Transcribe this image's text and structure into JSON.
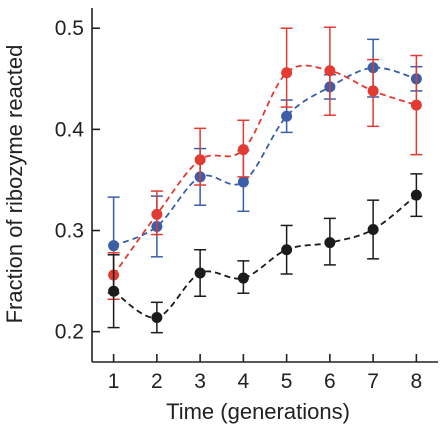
{
  "chart_data": {
    "type": "line",
    "xlabel": "Time (generations)",
    "ylabel": "Fraction of ribozyme reacted",
    "x": [
      1,
      2,
      3,
      4,
      5,
      6,
      7,
      8
    ],
    "xlim": [
      0.5,
      8.5
    ],
    "ylim": [
      0.17,
      0.52
    ],
    "xticks": [
      1,
      2,
      3,
      4,
      5,
      6,
      7,
      8
    ],
    "yticks": [
      0.2,
      0.3,
      0.4,
      0.5
    ],
    "ytick_labels": [
      "0.2",
      "0.3",
      "0.4",
      "0.5"
    ],
    "grid": false,
    "legend": "none",
    "series": [
      {
        "color": "#3a5ea8",
        "values": [
          0.285,
          0.304,
          0.353,
          0.348,
          0.413,
          0.442,
          0.461,
          0.45
        ],
        "err_low": [
          0.238,
          0.274,
          0.325,
          0.319,
          0.397,
          0.43,
          0.432,
          0.438
        ],
        "err_high": [
          0.333,
          0.334,
          0.381,
          0.379,
          0.429,
          0.454,
          0.489,
          0.462
        ]
      },
      {
        "color": "#e23b32",
        "values": [
          0.256,
          0.316,
          0.37,
          0.38,
          0.456,
          0.458,
          0.438,
          0.424
        ],
        "err_low": [
          0.232,
          0.296,
          0.345,
          0.353,
          0.422,
          0.414,
          0.403,
          0.375
        ],
        "err_high": [
          0.278,
          0.339,
          0.401,
          0.409,
          0.5,
          0.501,
          0.469,
          0.473
        ]
      },
      {
        "color": "#1b1b1b",
        "values": [
          0.24,
          0.214,
          0.258,
          0.253,
          0.281,
          0.288,
          0.301,
          0.335
        ],
        "err_low": [
          0.204,
          0.199,
          0.235,
          0.238,
          0.257,
          0.266,
          0.272,
          0.314
        ],
        "err_high": [
          0.276,
          0.229,
          0.281,
          0.27,
          0.305,
          0.312,
          0.33,
          0.356
        ]
      }
    ]
  }
}
